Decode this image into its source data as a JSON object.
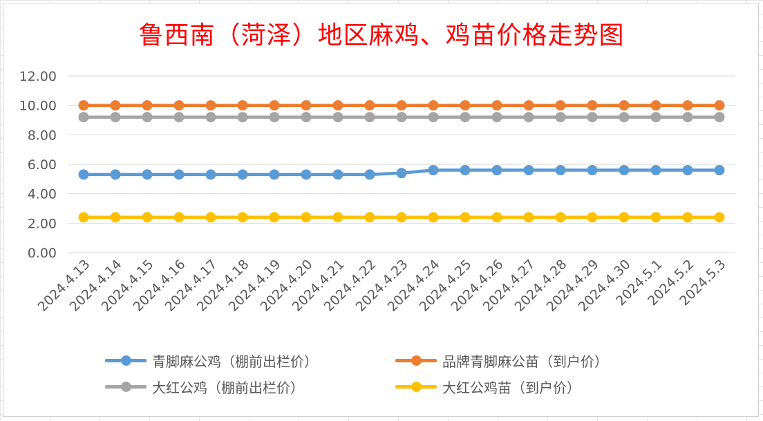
{
  "chart_data": {
    "type": "line",
    "title": "鲁西南（菏泽）地区麻鸡、鸡苗价格走势图",
    "xlabel": "",
    "ylabel": "",
    "ylim": [
      0,
      12
    ],
    "yticks": [
      "0.00",
      "2.00",
      "4.00",
      "6.00",
      "8.00",
      "10.00",
      "12.00"
    ],
    "ytick_values": [
      0,
      2,
      4,
      6,
      8,
      10,
      12
    ],
    "grid": "horizontal",
    "legend_position": "bottom",
    "categories": [
      "2024.4.13",
      "2024.4.14",
      "2024.4.15",
      "2024.4.16",
      "2024.4.17",
      "2024.4.18",
      "2024.4.19",
      "2024.4.20",
      "2024.4.21",
      "2024.4.22",
      "2024.4.23",
      "2024.4.24",
      "2024.4.25",
      "2024.4.26",
      "2024.4.27",
      "2024.4.28",
      "2024.4.29",
      "2024.4.30",
      "2024.5.1",
      "2024.5.2",
      "2024.5.3"
    ],
    "series": [
      {
        "name": "青脚麻公鸡（棚前出栏价）",
        "color": "#5b9bd5",
        "values": [
          5.3,
          5.3,
          5.3,
          5.3,
          5.3,
          5.3,
          5.3,
          5.3,
          5.3,
          5.3,
          5.4,
          5.6,
          5.6,
          5.6,
          5.6,
          5.6,
          5.6,
          5.6,
          5.6,
          5.6,
          5.6
        ]
      },
      {
        "name": "品牌青脚麻公苗（到户价）",
        "color": "#ed7d31",
        "values": [
          10,
          10,
          10,
          10,
          10,
          10,
          10,
          10,
          10,
          10,
          10,
          10,
          10,
          10,
          10,
          10,
          10,
          10,
          10,
          10,
          10
        ]
      },
      {
        "name": "大红公鸡（棚前出栏价）",
        "color": "#a5a5a5",
        "values": [
          9.2,
          9.2,
          9.2,
          9.2,
          9.2,
          9.2,
          9.2,
          9.2,
          9.2,
          9.2,
          9.2,
          9.2,
          9.2,
          9.2,
          9.2,
          9.2,
          9.2,
          9.2,
          9.2,
          9.2,
          9.2
        ]
      },
      {
        "name": "大红公鸡苗（到户价）",
        "color": "#ffc000",
        "values": [
          2.4,
          2.4,
          2.4,
          2.4,
          2.4,
          2.4,
          2.4,
          2.4,
          2.4,
          2.4,
          2.4,
          2.4,
          2.4,
          2.4,
          2.4,
          2.4,
          2.4,
          2.4,
          2.4,
          2.4,
          2.4
        ]
      }
    ]
  }
}
